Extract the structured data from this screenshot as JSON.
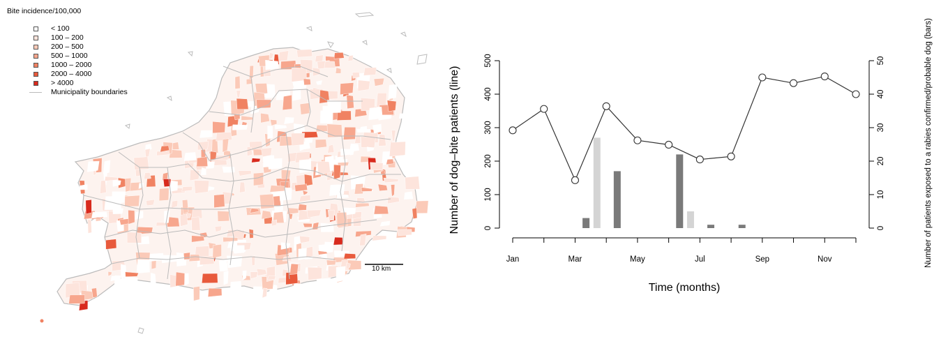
{
  "map": {
    "legend_title": "Bite incidence/100,000",
    "legend_items": [
      {
        "label": "< 100",
        "color": "#ffffff"
      },
      {
        "label": "100 – 200",
        "color": "#fde4dc"
      },
      {
        "label": "200 – 500",
        "color": "#fbcab8"
      },
      {
        "label": "500 – 1000",
        "color": "#f7a68d"
      },
      {
        "label": "1000 – 2000",
        "color": "#f08262"
      },
      {
        "label": "2000 – 4000",
        "color": "#e85a3c"
      },
      {
        "label": "> 4000",
        "color": "#d82a1d"
      }
    ],
    "boundary_label": "Municipality boundaries",
    "boundary_color": "#bbbbbb",
    "scale_label": "10 km"
  },
  "chart_data": {
    "type": "line",
    "xlabel": "Time (months)",
    "ylabel_left": "Number of dog–bite patients (line)",
    "ylabel_right": "Number of patients exposed to a rabies confirmed/probable dog (bars)",
    "x_ticks": [
      "Jan",
      "Mar",
      "May",
      "Jul",
      "Sep",
      "Nov"
    ],
    "y_left_ticks": [
      0,
      100,
      200,
      300,
      400,
      500
    ],
    "y_right_ticks": [
      0,
      10,
      20,
      30,
      40,
      50
    ],
    "ylim_left": [
      0,
      500
    ],
    "ylim_right": [
      0,
      50
    ],
    "line_series": {
      "x": [
        0,
        1,
        2,
        3,
        4,
        5,
        6,
        7,
        8,
        9,
        10,
        11
      ],
      "values": [
        292,
        356,
        143,
        364,
        262,
        249,
        205,
        214,
        450,
        433,
        453,
        400
      ]
    },
    "bar_series": [
      {
        "color": "#7a7a7a",
        "x": [
          2.35,
          3.35,
          5.35,
          6.35,
          7.35
        ],
        "values": [
          3,
          17,
          22,
          1,
          1
        ]
      },
      {
        "color": "#d4d4d4",
        "x": [
          2.7,
          5.7
        ],
        "values": [
          27,
          5
        ]
      }
    ]
  }
}
